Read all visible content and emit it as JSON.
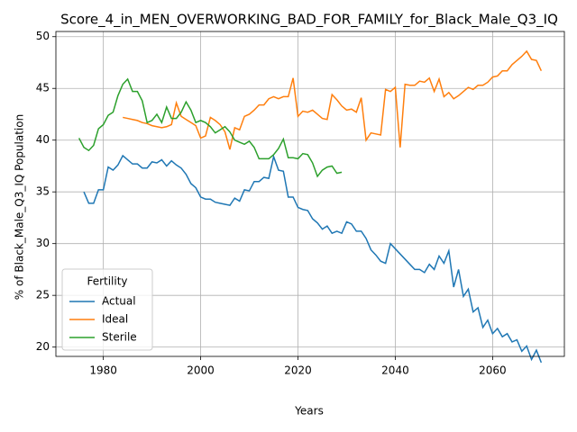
{
  "chart_data": {
    "type": "line",
    "title": "Score_4_in_MEN_OVERWORKING_BAD_FOR_FAMILY_for_Black_Male_Q3_IQ",
    "xlabel": "Years",
    "ylabel": "% of Black_Male_Q3_IQ Population",
    "legend_title": "Fertility",
    "legend": "lower left",
    "grid": true,
    "xlim": [
      1970.25,
      2074.75
    ],
    "xticks": [
      1980,
      2000,
      2020,
      2040,
      2060
    ],
    "ylim": [
      19.1,
      50.5
    ],
    "yticks": [
      20,
      25,
      30,
      35,
      40,
      45,
      50
    ],
    "series": [
      {
        "name": "Actual",
        "color": "#1f77b4",
        "x": [
          1976,
          1977,
          1978,
          1979,
          1980,
          1981,
          1982,
          1983,
          1984,
          1985,
          1986,
          1987,
          1988,
          1989,
          1990,
          1991,
          1992,
          1993,
          1994,
          1995,
          1996,
          1997,
          1998,
          1999,
          2000,
          2001,
          2002,
          2003,
          2004,
          2005,
          2006,
          2007,
          2008,
          2009,
          2010,
          2011,
          2012,
          2013,
          2014,
          2015,
          2016,
          2017,
          2018,
          2019,
          2020,
          2021,
          2022,
          2023,
          2024,
          2025,
          2026,
          2027,
          2028,
          2029,
          2030,
          2031,
          2032,
          2033,
          2034,
          2035,
          2036,
          2037,
          2038,
          2039,
          2040,
          2041,
          2042,
          2043,
          2044,
          2045,
          2046,
          2047,
          2048,
          2049,
          2050,
          2051,
          2052,
          2053,
          2054,
          2055,
          2056,
          2057,
          2058,
          2059,
          2060,
          2061,
          2062,
          2063,
          2064,
          2065,
          2066,
          2067,
          2068,
          2069,
          2070
        ],
        "values": [
          35.0,
          33.9,
          33.9,
          35.2,
          35.2,
          37.4,
          37.1,
          37.6,
          38.5,
          38.1,
          37.7,
          37.7,
          37.3,
          37.3,
          37.9,
          37.8,
          38.1,
          37.5,
          38.0,
          37.6,
          37.3,
          36.7,
          35.8,
          35.4,
          34.5,
          34.3,
          34.3,
          34.0,
          33.9,
          33.8,
          33.7,
          34.4,
          34.1,
          35.2,
          35.1,
          36.0,
          36.0,
          36.4,
          36.3,
          38.4,
          37.1,
          37.0,
          34.5,
          34.5,
          33.5,
          33.3,
          33.2,
          32.4,
          32.0,
          31.4,
          31.7,
          31.0,
          31.2,
          31.0,
          32.1,
          31.9,
          31.2,
          31.2,
          30.5,
          29.4,
          28.9,
          28.3,
          28.1,
          30.0,
          29.5,
          29.0,
          28.5,
          28.0,
          27.5,
          27.5,
          27.2,
          28.0,
          27.5,
          28.8,
          28.1,
          29.3,
          25.8,
          27.5,
          24.9,
          25.6,
          23.4,
          23.8,
          21.9,
          22.6,
          21.3,
          21.8,
          21.0,
          21.3,
          20.5,
          20.7,
          19.6,
          20.1,
          18.8,
          19.7,
          18.5
        ]
      },
      {
        "name": "Ideal",
        "color": "#ff7f0e",
        "x": [
          1984,
          1985,
          1986,
          1987,
          1988,
          1989,
          1990,
          1991,
          1992,
          1993,
          1994,
          1995,
          1996,
          1997,
          1998,
          1999,
          2000,
          2001,
          2002,
          2003,
          2004,
          2005,
          2006,
          2007,
          2008,
          2009,
          2010,
          2011,
          2012,
          2013,
          2014,
          2015,
          2016,
          2017,
          2018,
          2019,
          2020,
          2021,
          2022,
          2023,
          2024,
          2025,
          2026,
          2027,
          2028,
          2029,
          2030,
          2031,
          2032,
          2033,
          2034,
          2035,
          2036,
          2037,
          2038,
          2039,
          2040,
          2041,
          2042,
          2043,
          2044,
          2045,
          2046,
          2047,
          2048,
          2049,
          2050,
          2051,
          2052,
          2053,
          2054,
          2055,
          2056,
          2057,
          2058,
          2059,
          2060,
          2061,
          2062,
          2063,
          2064,
          2065,
          2066,
          2067,
          2068,
          2069,
          2070
        ],
        "values": [
          42.2,
          42.1,
          42.0,
          41.9,
          41.7,
          41.6,
          41.4,
          41.3,
          41.2,
          41.3,
          41.5,
          43.6,
          42.3,
          42.0,
          41.7,
          41.4,
          40.2,
          40.4,
          42.2,
          41.9,
          41.5,
          40.8,
          39.1,
          41.2,
          41.0,
          42.3,
          42.5,
          42.9,
          43.4,
          43.4,
          44.0,
          44.2,
          44.0,
          44.2,
          44.2,
          46.0,
          42.3,
          42.8,
          42.7,
          42.9,
          42.5,
          42.1,
          42.0,
          44.4,
          43.9,
          43.3,
          42.9,
          43.0,
          42.7,
          44.1,
          40.0,
          40.7,
          40.6,
          40.5,
          44.9,
          44.7,
          45.1,
          39.3,
          45.4,
          45.3,
          45.3,
          45.7,
          45.6,
          46.0,
          44.7,
          45.9,
          44.2,
          44.6,
          44.0,
          44.3,
          44.7,
          45.1,
          44.9,
          45.3,
          45.3,
          45.6,
          46.1,
          46.2,
          46.7,
          46.7,
          47.3,
          47.7,
          48.1,
          48.6,
          47.8,
          47.7,
          46.7
        ]
      },
      {
        "name": "Sterile",
        "color": "#2ca02c",
        "x": [
          1975,
          1976,
          1977,
          1978,
          1979,
          1980,
          1981,
          1982,
          1983,
          1984,
          1985,
          1986,
          1987,
          1988,
          1989,
          1990,
          1991,
          1992,
          1993,
          1994,
          1995,
          1996,
          1997,
          1998,
          1999,
          2000,
          2001,
          2002,
          2003,
          2004,
          2005,
          2006,
          2007,
          2008,
          2009,
          2010,
          2011,
          2012,
          2013,
          2014,
          2015,
          2016,
          2017,
          2018,
          2019,
          2020,
          2021,
          2022,
          2023,
          2024,
          2025,
          2026,
          2027,
          2028,
          2029
        ],
        "values": [
          40.2,
          39.3,
          39.0,
          39.5,
          41.1,
          41.5,
          42.4,
          42.7,
          44.3,
          45.4,
          45.9,
          44.7,
          44.7,
          43.8,
          41.7,
          41.9,
          42.5,
          41.7,
          43.2,
          42.1,
          42.1,
          42.7,
          43.7,
          42.9,
          41.7,
          41.9,
          41.7,
          41.3,
          40.7,
          41.0,
          41.3,
          40.8,
          40.0,
          39.8,
          39.6,
          39.9,
          39.3,
          38.2,
          38.2,
          38.2,
          38.6,
          39.2,
          40.1,
          38.3,
          38.3,
          38.2,
          38.7,
          38.6,
          37.8,
          36.5,
          37.1,
          37.4,
          37.5,
          36.8,
          36.9
        ]
      }
    ]
  }
}
